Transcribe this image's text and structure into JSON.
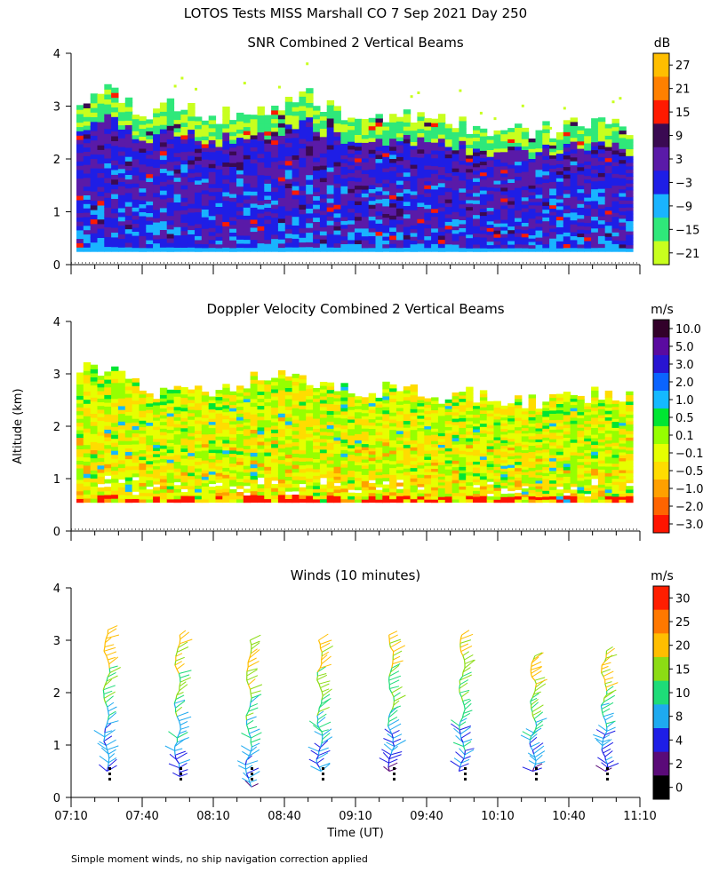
{
  "title": "LOTOS Tests MISS Marshall CO   7 Sep 2021 Day 250",
  "ylabel": "Altitude (km)",
  "xlabel": "Time (UT)",
  "footnote": "Simple moment winds, no ship navigation correction applied",
  "time_ticks": [
    "07:10",
    "07:40",
    "08:10",
    "08:40",
    "09:10",
    "09:40",
    "10:10",
    "10:40",
    "11:10"
  ],
  "chart_data": [
    {
      "type": "heatmap",
      "title": "SNR Combined 2 Vertical Beams",
      "units": "dB",
      "xlim": [
        "07:10",
        "11:10"
      ],
      "ylim": [
        0,
        4
      ],
      "y_ticks": [
        "0",
        "1",
        "2",
        "3",
        "4"
      ],
      "colorbar": {
        "labels": [
          "27",
          "21",
          "15",
          "9",
          "3",
          "−3",
          "−9",
          "−15",
          "−21"
        ],
        "colors": [
          "#ffbe00",
          "#ff8000",
          "#ff1a00",
          "#3a0a52",
          "#5a1aa8",
          "#1e1ee6",
          "#19b4ff",
          "#2fe87a",
          "#c8ff1e"
        ]
      },
      "signal_top_km": [
        3.1,
        3.3,
        2.9,
        3.0,
        2.8,
        2.9,
        3.0,
        3.2,
        2.9,
        2.8,
        2.8,
        2.8,
        2.6,
        2.6,
        2.5,
        2.6,
        2.7,
        2.6
      ],
      "signal_bottom_km": 0.25
    },
    {
      "type": "heatmap",
      "title": "Doppler Velocity Combined 2 Vertical Beams",
      "units": "m/s",
      "xlim": [
        "07:10",
        "11:10"
      ],
      "ylim": [
        0,
        4
      ],
      "y_ticks": [
        "0",
        "1",
        "2",
        "3",
        "4"
      ],
      "colorbar": {
        "labels": [
          "10.0",
          "5.0",
          "3.0",
          "2.0",
          "1.0",
          "0.5",
          "0.1",
          "−0.1",
          "−0.5",
          "−1.0",
          "−2.0",
          "−3.0"
        ],
        "colors": [
          "#32002a",
          "#5a0aa0",
          "#2814d2",
          "#0a64ff",
          "#14b9ff",
          "#00e632",
          "#96ff00",
          "#e6ff00",
          "#ffdc00",
          "#ffa000",
          "#ff6400",
          "#ff1400"
        ]
      },
      "signal_top_km": [
        3.1,
        3.0,
        2.7,
        2.6,
        2.7,
        2.8,
        3.1,
        2.9,
        2.8,
        2.7,
        2.7,
        2.6,
        2.6,
        2.5,
        2.5,
        2.5,
        2.6,
        2.6
      ],
      "signal_bottom_km": 0.55
    },
    {
      "type": "wind_barbs",
      "title": "Winds (10 minutes)",
      "units": "m/s",
      "xlim": [
        "07:10",
        "11:10"
      ],
      "ylim": [
        0,
        4
      ],
      "y_ticks": [
        "0",
        "1",
        "2",
        "3",
        "4"
      ],
      "colorbar": {
        "labels": [
          "30",
          "25",
          "20",
          "15",
          "10",
          "8",
          "4",
          "2",
          "0"
        ],
        "colors": [
          "#ff1e00",
          "#ff7800",
          "#ffbe00",
          "#8cdc14",
          "#1edc78",
          "#1eaaf0",
          "#1e1ee6",
          "#5a0a78",
          "#000000"
        ]
      },
      "profiles": [
        {
          "time": "07:25",
          "top_km": 3.2,
          "bottom_km": 0.5
        },
        {
          "time": "07:55",
          "top_km": 3.1,
          "bottom_km": 0.4
        },
        {
          "time": "08:25",
          "top_km": 3.0,
          "bottom_km": 0.2
        },
        {
          "time": "08:55",
          "top_km": 3.0,
          "bottom_km": 0.5
        },
        {
          "time": "09:25",
          "top_km": 3.1,
          "bottom_km": 0.5
        },
        {
          "time": "09:55",
          "top_km": 3.1,
          "bottom_km": 0.5
        },
        {
          "time": "10:25",
          "top_km": 2.7,
          "bottom_km": 0.5
        },
        {
          "time": "10:55",
          "top_km": 2.8,
          "bottom_km": 0.5
        }
      ]
    }
  ]
}
